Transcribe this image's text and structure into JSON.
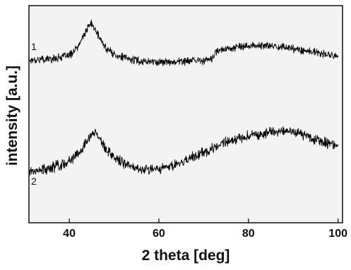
{
  "chart_data": {
    "type": "line",
    "title": "",
    "xlabel": "2 theta [deg]",
    "ylabel": "intensity [a.u.]",
    "xlim": [
      31,
      101
    ],
    "ylim": [
      0,
      100
    ],
    "xticks": [
      40,
      60,
      80,
      100
    ],
    "xtick_labels": [
      "40",
      "60",
      "80",
      "100"
    ],
    "grid": false,
    "legend": "none",
    "colors": {
      "line": "#000000",
      "plot_background": "#f3f3f3",
      "frame": "#000000"
    },
    "series": [
      {
        "label": "1",
        "x": [
          31,
          36,
          40,
          42,
          43,
          44,
          44.8,
          45.5,
          46.5,
          48,
          50,
          53,
          56,
          60,
          65,
          70,
          72,
          72.5,
          74,
          76,
          80,
          84,
          88,
          92,
          96,
          100
        ],
        "y": [
          75,
          75.5,
          77,
          81,
          85.5,
          89,
          92,
          90,
          86,
          81,
          77.5,
          75.5,
          74.5,
          74,
          74.3,
          74.8,
          75.3,
          78,
          80,
          80.5,
          81.5,
          81.5,
          81,
          79.5,
          78,
          76.5
        ],
        "noise": 2.2
      },
      {
        "label": "2",
        "x": [
          31,
          34,
          38,
          41,
          43,
          44.5,
          45.5,
          46.5,
          48,
          50,
          53,
          56,
          60,
          65,
          70,
          75,
          80,
          85,
          90,
          93,
          96,
          100
        ],
        "y": [
          24,
          24.5,
          26.5,
          29.5,
          34,
          39.5,
          43,
          39.5,
          34.5,
          30,
          26.5,
          24.5,
          25,
          27.5,
          32.5,
          37,
          40,
          42,
          42,
          40,
          37.5,
          35
        ],
        "noise": 3
      }
    ]
  }
}
